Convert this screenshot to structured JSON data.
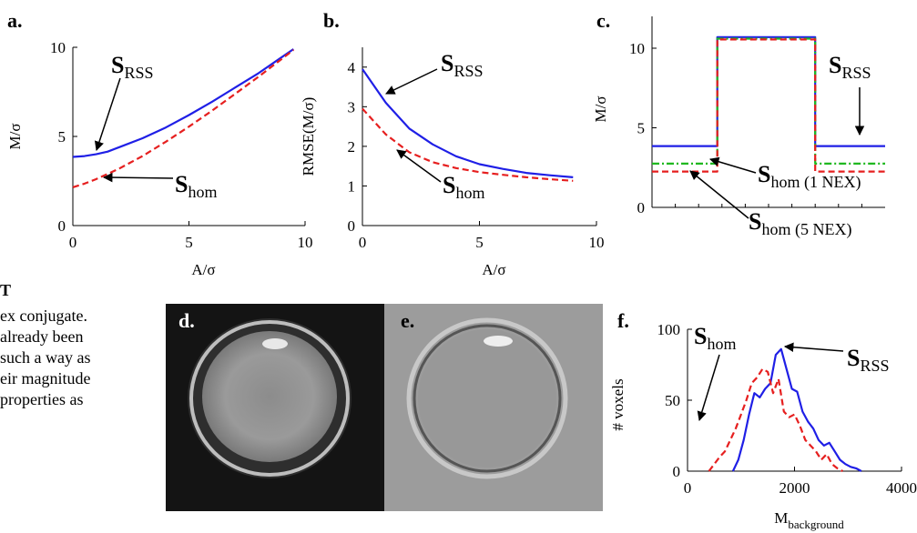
{
  "chart_data": [
    {
      "panel": "a.",
      "type": "line",
      "xlabel": "A/σ",
      "ylabel": "M/σ",
      "xlim": [
        0,
        10
      ],
      "ylim": [
        0,
        10
      ],
      "xticks": [
        "0",
        "5",
        "10"
      ],
      "yticks": [
        "0",
        "5",
        "10"
      ],
      "series": [
        {
          "color": "#1f1fe6",
          "style": "solid",
          "x": [
            0,
            0.5,
            1,
            1.5,
            2,
            3,
            4,
            5,
            6,
            7,
            8,
            9,
            9.5
          ],
          "y": [
            3.85,
            3.9,
            4.0,
            4.15,
            4.4,
            4.9,
            5.5,
            6.2,
            6.95,
            7.75,
            8.55,
            9.45,
            9.9
          ]
        },
        {
          "color": "#e61f1f",
          "style": "dashed",
          "x": [
            0,
            0.5,
            1,
            1.5,
            2,
            3,
            4,
            5,
            6,
            7,
            8,
            9,
            9.5
          ],
          "y": [
            2.15,
            2.35,
            2.6,
            2.9,
            3.2,
            3.9,
            4.7,
            5.55,
            6.45,
            7.4,
            8.35,
            9.35,
            9.85
          ]
        }
      ],
      "annotations": [
        {
          "main": "S",
          "sub": "RSS"
        },
        {
          "main": "S",
          "sub": "hom"
        }
      ]
    },
    {
      "panel": "b.",
      "type": "line",
      "xlabel": "A/σ",
      "ylabel": "RMSE(M/σ)",
      "xlim": [
        0,
        10
      ],
      "ylim": [
        0,
        4.5
      ],
      "xticks": [
        "0",
        "5",
        "10"
      ],
      "yticks": [
        "0",
        "1",
        "2",
        "3",
        "4"
      ],
      "series": [
        {
          "color": "#1f1fe6",
          "style": "solid",
          "x": [
            0,
            1,
            2,
            3,
            4,
            5,
            6,
            7,
            8,
            9
          ],
          "y": [
            3.95,
            3.1,
            2.45,
            2.05,
            1.75,
            1.55,
            1.43,
            1.33,
            1.27,
            1.22
          ]
        },
        {
          "color": "#e61f1f",
          "style": "dashed",
          "x": [
            0,
            1,
            2,
            3,
            4,
            5,
            6,
            7,
            8,
            9
          ],
          "y": [
            2.95,
            2.3,
            1.85,
            1.6,
            1.45,
            1.35,
            1.28,
            1.22,
            1.17,
            1.13
          ]
        }
      ],
      "annotations": [
        {
          "main": "S",
          "sub": "RSS"
        },
        {
          "main": "S",
          "sub": "hom"
        }
      ]
    },
    {
      "panel": "c.",
      "type": "line",
      "xlabel": "",
      "ylabel": "M/σ",
      "xlim": [
        0,
        100
      ],
      "ylim": [
        0,
        12
      ],
      "yticks": [
        "0",
        "5",
        "10"
      ],
      "series": [
        {
          "color": "#1f1fe6",
          "style": "solid",
          "x": [
            0,
            28,
            28,
            70,
            70,
            100
          ],
          "y": [
            3.85,
            3.85,
            10.7,
            10.7,
            3.85,
            3.85
          ]
        },
        {
          "color": "#1fb81f",
          "style": "dashdot",
          "x": [
            0,
            28,
            28,
            70,
            70,
            100
          ],
          "y": [
            2.75,
            2.75,
            10.6,
            10.6,
            2.75,
            2.75
          ]
        },
        {
          "color": "#e61f1f",
          "style": "dashed",
          "x": [
            0,
            28,
            28,
            70,
            70,
            100
          ],
          "y": [
            2.25,
            2.25,
            10.55,
            10.55,
            2.25,
            2.25
          ]
        }
      ],
      "annotations": [
        {
          "main": "S",
          "sub": "RSS"
        },
        {
          "main": "S",
          "sub": "hom (1 NEX)"
        },
        {
          "main": "S",
          "sub": "hom (5 NEX)"
        }
      ]
    },
    {
      "panel": "f.",
      "type": "line",
      "xlabel": "M",
      "xlabel_sub": "background",
      "ylabel": "# voxels",
      "xlim": [
        0,
        4000
      ],
      "ylim": [
        0,
        100
      ],
      "xticks": [
        "0",
        "2000",
        "4000"
      ],
      "yticks": [
        "0",
        "50",
        "100"
      ],
      "series": [
        {
          "color": "#1f1fe6",
          "style": "solid",
          "x": [
            850,
            950,
            1050,
            1150,
            1250,
            1350,
            1450,
            1550,
            1650,
            1750,
            1850,
            1950,
            2050,
            2150,
            2250,
            2350,
            2450,
            2550,
            2650,
            2750,
            2850,
            2950,
            3050,
            3150,
            3250
          ],
          "y": [
            0,
            8,
            22,
            40,
            55,
            52,
            58,
            62,
            82,
            86,
            72,
            58,
            56,
            42,
            35,
            30,
            22,
            18,
            20,
            14,
            8,
            5,
            3,
            2,
            0
          ]
        },
        {
          "color": "#e61f1f",
          "style": "dashed",
          "x": [
            400,
            500,
            600,
            700,
            800,
            900,
            1000,
            1100,
            1200,
            1300,
            1400,
            1500,
            1600,
            1700,
            1800,
            1900,
            2000,
            2100,
            2200,
            2300,
            2400,
            2500,
            2600,
            2700,
            2800,
            2900
          ],
          "y": [
            0,
            5,
            10,
            14,
            22,
            30,
            40,
            50,
            62,
            66,
            72,
            70,
            55,
            65,
            42,
            38,
            40,
            32,
            22,
            18,
            14,
            8,
            12,
            5,
            2,
            0
          ]
        }
      ],
      "annotations": [
        {
          "main": "S",
          "sub": "hom"
        },
        {
          "main": "S",
          "sub": "RSS"
        }
      ]
    }
  ],
  "images": [
    {
      "panel": "d."
    },
    {
      "panel": "e."
    }
  ],
  "text_fragment": {
    "lines": [
      "T",
      "ex  conjugate.",
      "already  been",
      "such a way as",
      "eir magnitude",
      "properties  as"
    ]
  }
}
